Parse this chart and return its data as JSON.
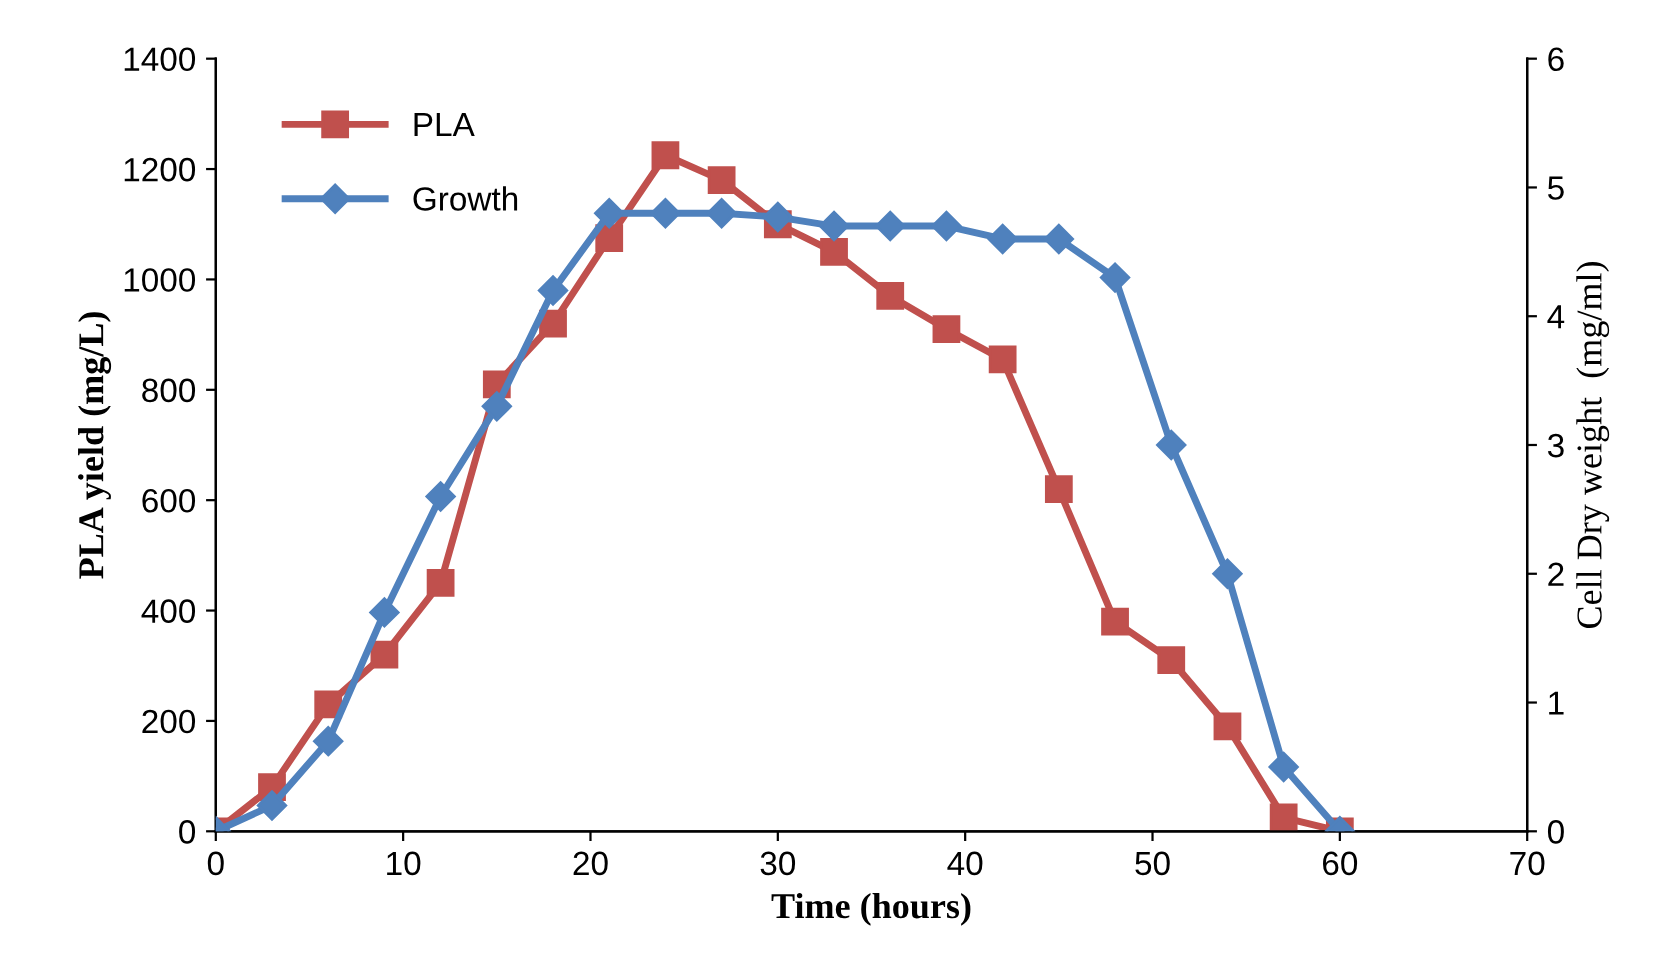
{
  "chart_data": {
    "type": "line",
    "xlabel": "Time (hours)",
    "ylabel": "PLA yield (mg/L)",
    "y2label": "Cell Dry weight  (mg/ml)",
    "x": [
      0,
      3,
      6,
      9,
      12,
      15,
      18,
      21,
      24,
      27,
      30,
      33,
      36,
      39,
      42,
      45,
      48,
      51,
      54,
      57,
      60
    ],
    "series": [
      {
        "name": "PLA",
        "color": "#c0504d",
        "marker": "square",
        "values": [
          0,
          80,
          230,
          320,
          450,
          810,
          920,
          1075,
          1225,
          1180,
          1100,
          1050,
          970,
          910,
          855,
          620,
          380,
          310,
          190,
          25,
          0
        ]
      },
      {
        "name": "Growth",
        "color": "#4f81bd",
        "marker": "diamond",
        "axis": "y2",
        "values": [
          0,
          0.2,
          0.7,
          1.7,
          2.6,
          3.3,
          4.2,
          4.8,
          4.8,
          4.8,
          4.77,
          4.7,
          4.7,
          4.7,
          4.6,
          4.6,
          4.3,
          3.0,
          2.0,
          0.5,
          0
        ]
      }
    ],
    "xlim": [
      0,
      70
    ],
    "xticks": [
      0,
      10,
      20,
      30,
      40,
      50,
      60,
      70
    ],
    "ylim": [
      0,
      1400
    ],
    "yticks": [
      0,
      200,
      400,
      600,
      800,
      1000,
      1200,
      1400
    ],
    "y2lim": [
      0,
      6
    ],
    "y2ticks": [
      0,
      1,
      2,
      3,
      4,
      5,
      6
    ],
    "legend": "top left",
    "grid": false,
    "line_style": "solid"
  }
}
